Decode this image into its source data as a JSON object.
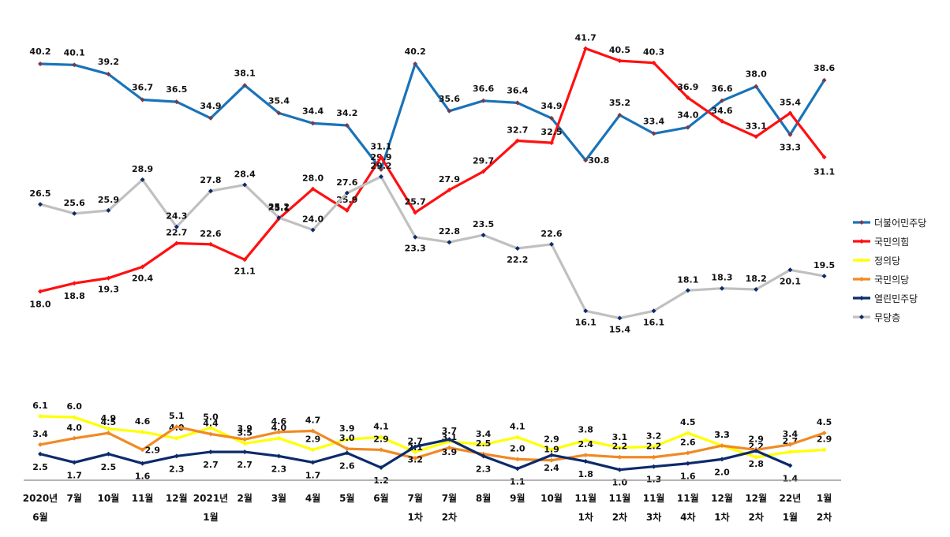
{
  "chart_data": [
    {
      "type": "line",
      "title": "",
      "xlabel": "",
      "ylabel": "",
      "ylim": [
        10,
        45
      ],
      "grid": false,
      "legend": "right",
      "categories": [
        [
          "2020년",
          "6월"
        ],
        [
          "7월",
          ""
        ],
        [
          "10월",
          ""
        ],
        [
          "11월",
          ""
        ],
        [
          "12월",
          ""
        ],
        [
          "2021년",
          "1월"
        ],
        [
          "2월",
          ""
        ],
        [
          "3월",
          ""
        ],
        [
          "4월",
          ""
        ],
        [
          "5월",
          ""
        ],
        [
          "6월",
          ""
        ],
        [
          "7월",
          "1차"
        ],
        [
          "7월",
          "2차"
        ],
        [
          "8월",
          ""
        ],
        [
          "9월",
          ""
        ],
        [
          "10월",
          ""
        ],
        [
          "11월",
          "1차"
        ],
        [
          "11월",
          "2차"
        ],
        [
          "11월",
          "3차"
        ],
        [
          "11월",
          "4차"
        ],
        [
          "12월",
          "1차"
        ],
        [
          "12월",
          "2차"
        ],
        [
          "22년",
          "1월"
        ],
        [
          "1월",
          "2차"
        ]
      ],
      "series": [
        {
          "name": "더불어민주당",
          "color": "#1a73b8",
          "marker": "#7a3a4a",
          "values": [
            40.2,
            40.1,
            39.2,
            36.7,
            36.5,
            34.9,
            38.1,
            35.4,
            34.4,
            34.2,
            29.9,
            40.2,
            35.6,
            36.6,
            36.4,
            34.9,
            30.8,
            35.2,
            33.4,
            34.0,
            36.6,
            38.0,
            33.3,
            38.6
          ]
        },
        {
          "name": "국민의힘",
          "color": "#ff1010",
          "marker": "#ff1010",
          "values": [
            18.0,
            18.8,
            19.3,
            20.4,
            22.7,
            22.6,
            21.1,
            25.1,
            28.0,
            25.9,
            31.1,
            25.7,
            27.9,
            29.7,
            32.7,
            32.5,
            41.7,
            40.5,
            40.3,
            36.9,
            34.6,
            33.1,
            35.4,
            31.1
          ]
        },
        {
          "name": "무당층",
          "color": "#c0c0c0",
          "marker": "#0d2a6b",
          "values": [
            26.5,
            25.6,
            25.9,
            28.9,
            24.3,
            27.8,
            28.4,
            25.2,
            24.0,
            27.6,
            29.2,
            23.3,
            22.8,
            23.5,
            22.2,
            22.6,
            16.1,
            15.4,
            16.1,
            18.1,
            18.3,
            18.2,
            20.1,
            19.5
          ]
        }
      ]
    },
    {
      "type": "line",
      "title": "",
      "xlabel": "",
      "ylabel": "",
      "ylim": [
        0,
        7
      ],
      "grid": false,
      "series": [
        {
          "name": "정의당",
          "color": "#ffff00",
          "marker": "#ffff00",
          "values": [
            6.1,
            6.0,
            4.9,
            4.6,
            4.0,
            5.0,
            3.5,
            4.0,
            2.9,
            3.9,
            4.1,
            2.7,
            3.7,
            3.4,
            4.1,
            2.9,
            3.8,
            3.1,
            3.2,
            4.5,
            3.3,
            2.2,
            2.7,
            2.9
          ]
        },
        {
          "name": "국민의당",
          "color": "#f08a24",
          "marker": "#f08a24",
          "values": [
            3.4,
            4.0,
            4.5,
            2.9,
            5.1,
            4.4,
            3.9,
            4.6,
            4.7,
            3.0,
            2.9,
            2.1,
            3.1,
            2.5,
            2.0,
            1.9,
            2.4,
            2.2,
            2.2,
            2.6,
            3.3,
            2.9,
            3.4,
            4.5
          ]
        },
        {
          "name": "열린민주당",
          "color": "#0d2a6b",
          "marker": "#0d2a6b",
          "values": [
            2.5,
            1.7,
            2.5,
            1.6,
            2.3,
            2.7,
            2.7,
            2.3,
            1.7,
            2.6,
            1.2,
            3.2,
            3.9,
            2.3,
            1.1,
            2.4,
            1.8,
            1.0,
            1.3,
            1.6,
            2.0,
            2.8,
            1.4,
            null
          ]
        }
      ]
    }
  ],
  "legend": [
    {
      "name": "더불어민주당",
      "color": "#1a73b8",
      "marker": "#7a3a4a"
    },
    {
      "name": "국민의힘",
      "color": "#ff1010",
      "marker": "#ff1010"
    },
    {
      "name": "정의당",
      "color": "#ffff00",
      "marker": "#ffff00"
    },
    {
      "name": "국민의당",
      "color": "#f08a24",
      "marker": "#f08a24"
    },
    {
      "name": "열린민주당",
      "color": "#0d2a6b",
      "marker": "#0d2a6b"
    },
    {
      "name": "무당층",
      "color": "#c0c0c0",
      "marker": "#0d2a6b"
    }
  ]
}
